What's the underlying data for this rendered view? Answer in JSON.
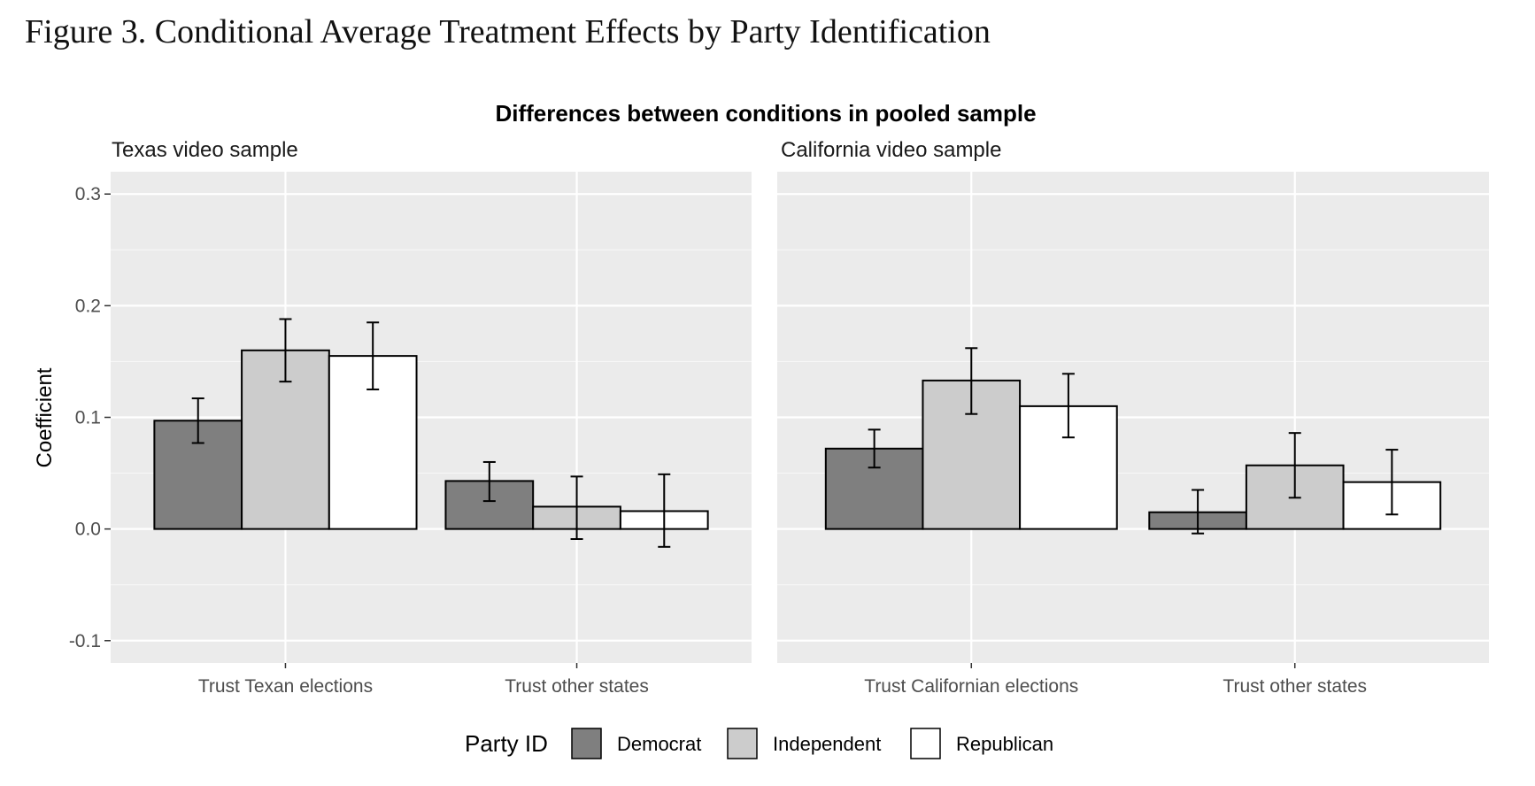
{
  "figure_caption": "Figure 3. Conditional Average Treatment Effects by Party Identification",
  "chart_data": {
    "type": "bar",
    "title": "Differences between conditions in pooled sample",
    "ylabel": "Coefficient",
    "xlabel": "",
    "ylim": [
      -0.12,
      0.32
    ],
    "yticks": [
      -0.1,
      0.0,
      0.1,
      0.2,
      0.3
    ],
    "ytick_labels": [
      "-0.1",
      "0.0",
      "0.1",
      "0.2",
      "0.3"
    ],
    "grid": true,
    "legend": {
      "title": "Party ID",
      "position": "bottom",
      "entries": [
        {
          "label": "Democrat",
          "color": "#7f7f7f"
        },
        {
          "label": "Independent",
          "color": "#cccccc"
        },
        {
          "label": "Republican",
          "color": "#ffffff"
        }
      ]
    },
    "panels": [
      {
        "title": "Texas video sample",
        "categories": [
          "Trust Texan elections",
          "Trust other states"
        ],
        "series": [
          {
            "name": "Democrat",
            "values": [
              0.097,
              0.043
            ],
            "ci_low": [
              0.077,
              0.025
            ],
            "ci_high": [
              0.117,
              0.06
            ]
          },
          {
            "name": "Independent",
            "values": [
              0.16,
              0.02
            ],
            "ci_low": [
              0.132,
              -0.009
            ],
            "ci_high": [
              0.188,
              0.047
            ]
          },
          {
            "name": "Republican",
            "values": [
              0.155,
              0.016
            ],
            "ci_low": [
              0.125,
              -0.016
            ],
            "ci_high": [
              0.185,
              0.049
            ]
          }
        ]
      },
      {
        "title": "California video sample",
        "categories": [
          "Trust Californian elections",
          "Trust other states"
        ],
        "series": [
          {
            "name": "Democrat",
            "values": [
              0.072,
              0.015
            ],
            "ci_low": [
              0.055,
              -0.004
            ],
            "ci_high": [
              0.089,
              0.035
            ]
          },
          {
            "name": "Independent",
            "values": [
              0.133,
              0.057
            ],
            "ci_low": [
              0.103,
              0.028
            ],
            "ci_high": [
              0.162,
              0.086
            ]
          },
          {
            "name": "Republican",
            "values": [
              0.11,
              0.042
            ],
            "ci_low": [
              0.082,
              0.013
            ],
            "ci_high": [
              0.139,
              0.071
            ]
          }
        ]
      }
    ]
  }
}
